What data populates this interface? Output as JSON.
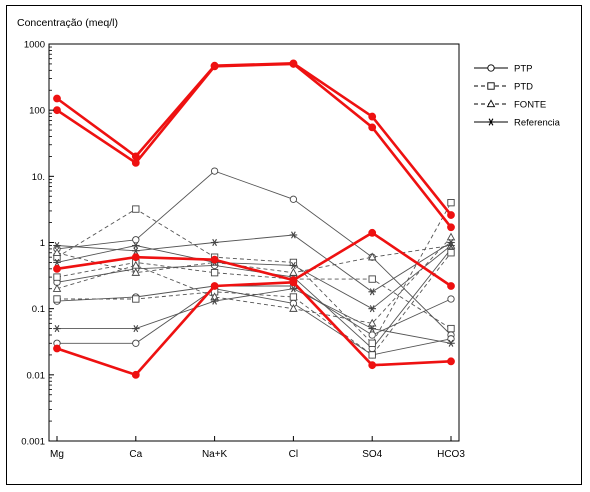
{
  "chart_data": {
    "type": "line",
    "title": "Concentração (meq/l)",
    "xlabel": "",
    "ylabel": "",
    "y_scale": "log",
    "ylim": [
      0.001,
      1000
    ],
    "yticks": [
      {
        "value": 0.001,
        "label": "0.001"
      },
      {
        "value": 0.01,
        "label": "0.01"
      },
      {
        "value": 0.1,
        "label": "0.1"
      },
      {
        "value": 1,
        "label": "1"
      },
      {
        "value": 10,
        "label": "10."
      },
      {
        "value": 100,
        "label": "100"
      },
      {
        "value": 1000,
        "label": "1000"
      }
    ],
    "categories": [
      "Mg",
      "Ca",
      "Na+K",
      "Cl",
      "SO4",
      "HCO3"
    ],
    "grid": false,
    "legend_position": "right",
    "legend": [
      {
        "label": "PTP",
        "marker": "circle",
        "dash": "solid"
      },
      {
        "label": "PTD",
        "marker": "square",
        "dash": "dashed"
      },
      {
        "label": "FONTE",
        "marker": "triangle",
        "dash": "dashed"
      },
      {
        "label": "Referencia",
        "marker": "star",
        "dash": "solid"
      }
    ],
    "colors": {
      "highlight": "#ee1111",
      "line": "#555555",
      "marker": "#444444"
    },
    "series": [
      {
        "group": "highlight",
        "values": [
          150,
          20,
          470,
          510,
          80,
          2.6
        ]
      },
      {
        "group": "highlight",
        "values": [
          100,
          16,
          460,
          500,
          55,
          1.7
        ]
      },
      {
        "group": "highlight",
        "values": [
          0.4,
          0.6,
          0.55,
          0.27,
          1.4,
          0.22
        ]
      },
      {
        "group": "highlight",
        "values": [
          0.025,
          0.01,
          0.22,
          0.25,
          0.014,
          0.016
        ]
      },
      {
        "group": "PTP",
        "marker": "circle",
        "dash": "solid",
        "values": [
          0.8,
          1.1,
          12,
          4.5,
          0.6,
          0.04
        ]
      },
      {
        "group": "PTP",
        "marker": "circle",
        "dash": "solid",
        "values": [
          0.25,
          0.4,
          0.45,
          0.3,
          0.025,
          0.8
        ]
      },
      {
        "group": "PTP",
        "marker": "circle",
        "dash": "solid",
        "values": [
          0.13,
          0.15,
          0.22,
          0.22,
          0.04,
          0.14
        ]
      },
      {
        "group": "PTP",
        "marker": "circle",
        "dash": "solid",
        "values": [
          0.03,
          0.03,
          0.2,
          0.12,
          0.02,
          0.035
        ]
      },
      {
        "group": "PTD",
        "marker": "square",
        "dash": "dashed",
        "values": [
          0.6,
          3.2,
          0.6,
          0.5,
          0.03,
          4
        ]
      },
      {
        "group": "PTD",
        "marker": "square",
        "dash": "dashed",
        "values": [
          0.3,
          0.5,
          0.35,
          0.28,
          0.28,
          0.05
        ]
      },
      {
        "group": "PTD",
        "marker": "square",
        "dash": "dashed",
        "values": [
          0.14,
          0.14,
          0.18,
          0.15,
          0.02,
          0.7
        ]
      },
      {
        "group": "FONTE",
        "marker": "triangle",
        "dash": "dashed",
        "values": [
          0.7,
          0.35,
          0.5,
          0.35,
          0.6,
          0.9
        ]
      },
      {
        "group": "FONTE",
        "marker": "triangle",
        "dash": "dashed",
        "values": [
          0.2,
          0.45,
          0.15,
          0.1,
          0.06,
          1.2
        ]
      },
      {
        "group": "Referencia",
        "marker": "star",
        "dash": "solid",
        "values": [
          0.9,
          0.75,
          1.0,
          1.3,
          0.18,
          1.0
        ]
      },
      {
        "group": "Referencia",
        "marker": "star",
        "dash": "solid",
        "values": [
          0.05,
          0.05,
          0.13,
          0.2,
          0.05,
          0.03
        ]
      },
      {
        "group": "Referencia",
        "marker": "star",
        "dash": "solid",
        "values": [
          0.5,
          0.9,
          0.5,
          0.45,
          0.1,
          0.9
        ]
      }
    ]
  }
}
